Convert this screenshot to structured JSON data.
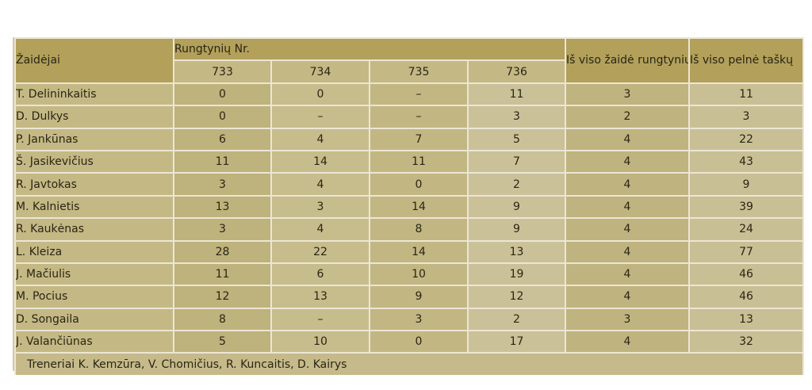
{
  "table": {
    "headers": {
      "player": "Žaidėjai",
      "matches_group": "Rungtynių Nr.",
      "matches": [
        "733",
        "734",
        "735",
        "736"
      ],
      "games_played": "Iš viso žaidė rungtynių",
      "points_total": "Iš viso pelnė taškų"
    },
    "rows": [
      {
        "name": "T. Delininkaitis",
        "m733": "0",
        "m734": "0",
        "m735": "–",
        "m736": "11",
        "games": "3",
        "points": "11"
      },
      {
        "name": "D. Dulkys",
        "m733": "0",
        "m734": "–",
        "m735": "–",
        "m736": "3",
        "games": "2",
        "points": "3"
      },
      {
        "name": "P. Jankūnas",
        "m733": "6",
        "m734": "4",
        "m735": "7",
        "m736": "5",
        "games": "4",
        "points": "22"
      },
      {
        "name": "Š. Jasikevičius",
        "m733": "11",
        "m734": "14",
        "m735": "11",
        "m736": "7",
        "games": "4",
        "points": "43"
      },
      {
        "name": "R. Javtokas",
        "m733": "3",
        "m734": "4",
        "m735": "0",
        "m736": "2",
        "games": "4",
        "points": "9"
      },
      {
        "name": "M. Kalnietis",
        "m733": "13",
        "m734": "3",
        "m735": "14",
        "m736": "9",
        "games": "4",
        "points": "39"
      },
      {
        "name": "R. Kaukėnas",
        "m733": "3",
        "m734": "4",
        "m735": "8",
        "m736": "9",
        "games": "4",
        "points": "24"
      },
      {
        "name": "L. Kleiza",
        "m733": "28",
        "m734": "22",
        "m735": "14",
        "m736": "13",
        "games": "4",
        "points": "77"
      },
      {
        "name": "J. Mačiulis",
        "m733": "11",
        "m734": "6",
        "m735": "10",
        "m736": "19",
        "games": "4",
        "points": "46"
      },
      {
        "name": "M. Pocius",
        "m733": "12",
        "m734": "13",
        "m735": "9",
        "m736": "12",
        "games": "4",
        "points": "46"
      },
      {
        "name": "D. Songaila",
        "m733": "8",
        "m734": "–",
        "m735": "3",
        "m736": "2",
        "games": "3",
        "points": "13"
      },
      {
        "name": "J. Valančiūnas",
        "m733": "5",
        "m734": "10",
        "m735": "0",
        "m736": "17",
        "games": "4",
        "points": "32"
      }
    ],
    "footer": "Treneriai K. Kemzūra, V. Chomičius, R. Kuncaitis, D. Kairys"
  },
  "colors": {
    "header_dark": "#b2a05b",
    "header_light": "#c4b885",
    "grid_lines": "#ece6d4",
    "text": "#2a2613"
  }
}
